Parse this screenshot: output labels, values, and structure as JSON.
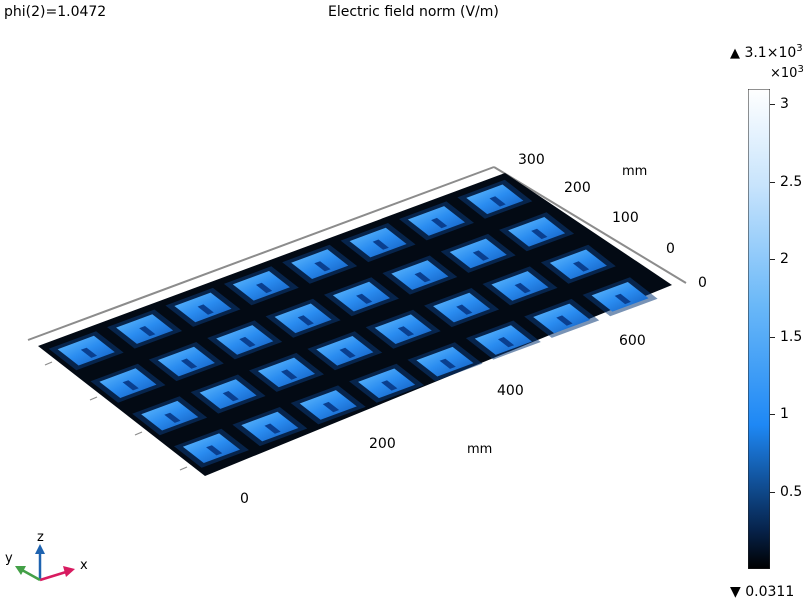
{
  "header": {
    "parameter": "phi(2)=1.0472",
    "title": "Electric field norm (V/m)"
  },
  "axes": {
    "y_ticks": [
      "300",
      "200",
      "100",
      "0"
    ],
    "y_unit": "mm",
    "x_ticks": [
      "0",
      "200",
      "400",
      "600"
    ],
    "x_unit": "mm",
    "z_end_tick": "0"
  },
  "colorbar": {
    "max_text": "3.1×10",
    "max_exp": "3",
    "scale_text": "×10",
    "scale_exp": "3",
    "ticks": [
      "3",
      "2.5",
      "2",
      "1.5",
      "1",
      "0.5"
    ],
    "min_text": "0.0311",
    "colors": {
      "low": "#000000",
      "mid": "#1e88f5",
      "high": "#ffffff"
    }
  },
  "triad": {
    "x": "x",
    "y": "y",
    "z": "z",
    "x_color": "#d81b60",
    "y_color": "#43a047",
    "z_color": "#1e63b0"
  },
  "array": {
    "rows": 4,
    "cols": 8
  }
}
